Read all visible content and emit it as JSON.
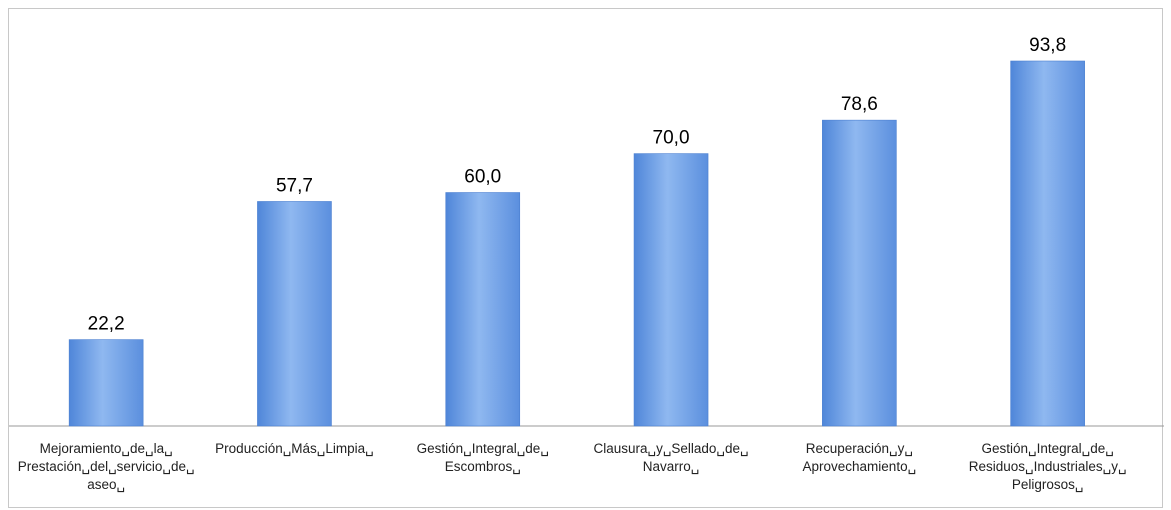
{
  "chart_data": {
    "type": "bar",
    "categories": [
      "Mejoramiento␣de␣la␣ Prestación␣del␣servicio␣de␣ aseo␣",
      "Producción␣Más␣Limpia␣",
      "Gestión␣Integral␣de␣ Escombros␣",
      "Clausura␣y␣Sellado␣de␣ Navarro␣",
      "Recuperación␣y␣ Aprovechamiento␣",
      "Gestión␣Integral␣de␣ Residuos␣Industriales␣y␣ Peligrosos␣"
    ],
    "category_lines": [
      [
        "Mejoramiento␣de␣la␣",
        "Prestación␣del␣servicio␣de␣",
        "aseo␣"
      ],
      [
        "Producción␣Más␣Limpia␣"
      ],
      [
        "Gestión␣Integral␣de␣",
        "Escombros␣"
      ],
      [
        "Clausura␣y␣Sellado␣de␣",
        "Navarro␣"
      ],
      [
        "Recuperación␣y␣",
        "Aprovechamiento␣"
      ],
      [
        "Gestión␣Integral␣de␣",
        "Residuos␣Industriales␣y␣",
        "Peligrosos␣"
      ]
    ],
    "values": [
      22.2,
      57.7,
      60.0,
      70.0,
      78.6,
      93.8
    ],
    "value_labels": [
      "22,2",
      "57,7",
      "60,0",
      "70,0",
      "78,6",
      "93,8"
    ],
    "ylim": [
      0,
      100
    ],
    "grid": false,
    "bar_color": "#6a9be3"
  }
}
